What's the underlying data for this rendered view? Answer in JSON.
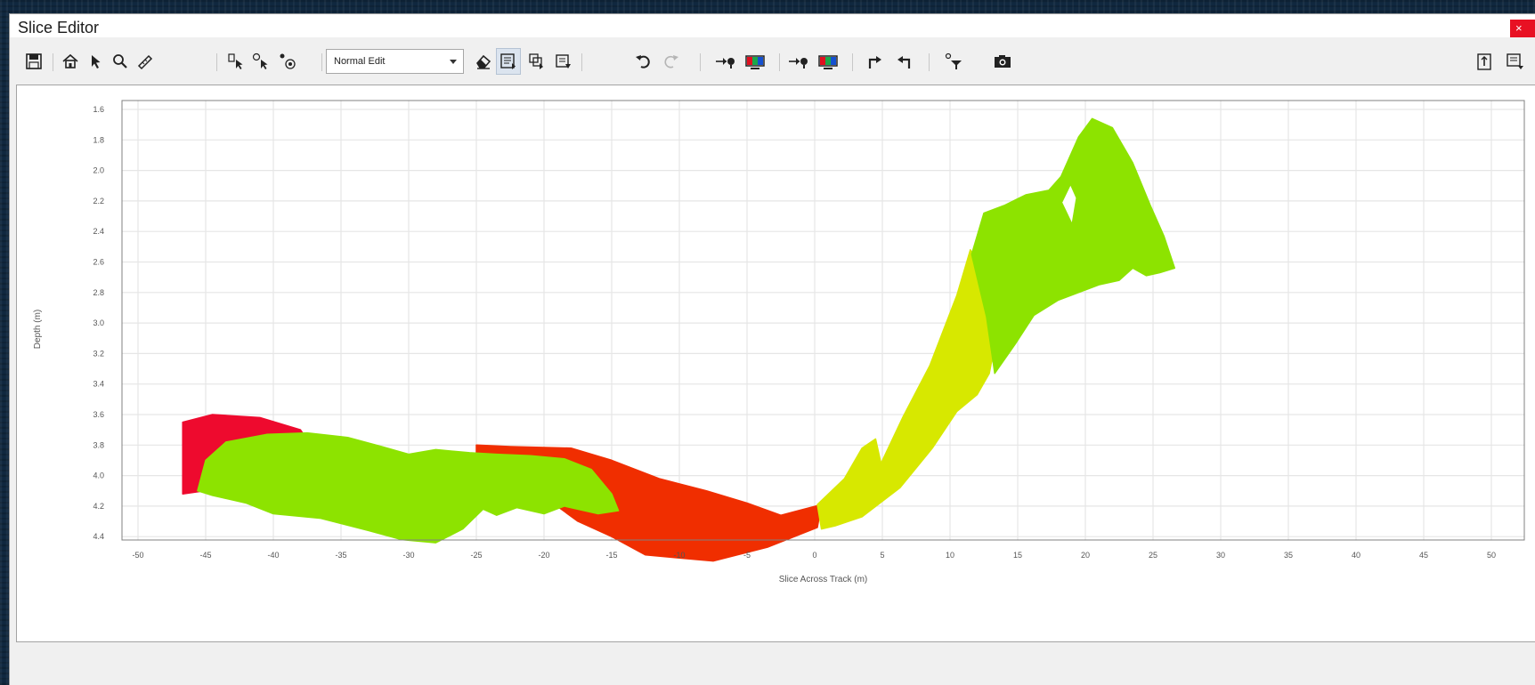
{
  "window": {
    "title": "Slice Editor",
    "close_label": "×"
  },
  "toolbar": {
    "edit_mode": {
      "selected": "Normal Edit"
    },
    "buttons": [
      "save-icon",
      "home-icon",
      "pointer-icon",
      "zoom-icon",
      "measure-icon",
      "select-points-icon",
      "select-points-2-icon",
      "select-points-3-icon",
      "eraser-icon",
      "box-select-icon",
      "lasso-select-icon",
      "box-edit-icon",
      "undo-icon",
      "redo-icon",
      "color-icon",
      "colorbar-icon",
      "color-2-icon",
      "colorbar-2-icon",
      "forward-icon",
      "back-icon",
      "filter-icon",
      "camera-icon",
      "export-icon",
      "panel-menu-icon"
    ]
  },
  "chart_data": {
    "type": "scatter",
    "title": "",
    "xlabel": "Slice Across Track (m)",
    "ylabel": "Depth (m)",
    "xlim": [
      -50,
      50
    ],
    "ylim": [
      1.6,
      4.4
    ],
    "y_inverted": true,
    "grid": true,
    "x_ticks": [
      "-50",
      "-45",
      "-40",
      "-35",
      "-30",
      "-25",
      "-20",
      "-15",
      "-10",
      "-5",
      "0",
      "5",
      "10",
      "15",
      "20",
      "25",
      "30",
      "35",
      "40",
      "45",
      "50"
    ],
    "y_ticks": [
      "1.6",
      "1.8",
      "2.0",
      "2.2",
      "2.4",
      "2.6",
      "2.8",
      "3.0",
      "3.2",
      "3.4",
      "3.6",
      "3.8",
      "4.0",
      "4.2",
      "4.4"
    ],
    "colors": {
      "red": "#ee0a2e",
      "orange_red": "#f02e00",
      "green": "#8de300",
      "yellow": "#d7e800",
      "grid": "#e6e6e6"
    },
    "regions": [
      {
        "color": "red",
        "polygon": [
          [
            -46.7,
            3.65
          ],
          [
            -44.5,
            3.6
          ],
          [
            -41,
            3.62
          ],
          [
            -38,
            3.7
          ],
          [
            -36.5,
            3.9
          ],
          [
            -37,
            4.1
          ],
          [
            -39.5,
            4.08
          ],
          [
            -43.5,
            4.08
          ],
          [
            -46.7,
            4.12
          ]
        ]
      },
      {
        "color": "orange_red",
        "polygon": [
          [
            -25,
            3.8
          ],
          [
            -22.5,
            3.81
          ],
          [
            -18,
            3.82
          ],
          [
            -15,
            3.9
          ],
          [
            -11.5,
            4.02
          ],
          [
            -8,
            4.1
          ],
          [
            -5,
            4.18
          ],
          [
            -2.5,
            4.26
          ],
          [
            0.5,
            4.19
          ],
          [
            0.2,
            4.34
          ],
          [
            -3.5,
            4.47
          ],
          [
            -7.5,
            4.56
          ],
          [
            -10,
            4.54
          ],
          [
            -12.5,
            4.52
          ],
          [
            -15,
            4.4
          ],
          [
            -17.5,
            4.3
          ],
          [
            -19.5,
            4.17
          ],
          [
            -21.5,
            4.08
          ],
          [
            -25,
            3.93
          ]
        ]
      },
      {
        "color": "green",
        "polygon": [
          [
            -45,
            3.9
          ],
          [
            -43.5,
            3.78
          ],
          [
            -40.5,
            3.73
          ],
          [
            -37.5,
            3.72
          ],
          [
            -34.5,
            3.75
          ],
          [
            -32,
            3.81
          ],
          [
            -30,
            3.86
          ],
          [
            -28,
            3.83
          ],
          [
            -25.5,
            3.85
          ],
          [
            -23.5,
            3.86
          ],
          [
            -21,
            3.87
          ],
          [
            -18.5,
            3.89
          ],
          [
            -16.5,
            3.96
          ],
          [
            -15,
            4.12
          ],
          [
            -14.5,
            4.23
          ],
          [
            -16,
            4.25
          ],
          [
            -18.5,
            4.2
          ],
          [
            -20,
            4.25
          ],
          [
            -22,
            4.21
          ],
          [
            -23.5,
            4.26
          ],
          [
            -24.5,
            4.22
          ],
          [
            -26,
            4.35
          ],
          [
            -28,
            4.44
          ],
          [
            -30.5,
            4.42
          ],
          [
            -33,
            4.36
          ],
          [
            -36.5,
            4.28
          ],
          [
            -40,
            4.25
          ],
          [
            -42,
            4.18
          ],
          [
            -44.5,
            4.13
          ],
          [
            -45.6,
            4.1
          ]
        ]
      },
      {
        "color": "yellow",
        "polygon": [
          [
            0.2,
            4.19
          ],
          [
            2.2,
            4.02
          ],
          [
            3.5,
            3.82
          ],
          [
            4.5,
            3.76
          ],
          [
            4.9,
            3.92
          ],
          [
            6.5,
            3.62
          ],
          [
            8.5,
            3.28
          ],
          [
            10.5,
            2.82
          ],
          [
            11.5,
            2.52
          ],
          [
            12.2,
            2.62
          ],
          [
            13.4,
            3.1
          ],
          [
            12.9,
            3.33
          ],
          [
            12.0,
            3.47
          ],
          [
            10.5,
            3.58
          ],
          [
            8.7,
            3.82
          ],
          [
            6.3,
            4.08
          ],
          [
            3.5,
            4.27
          ],
          [
            1.5,
            4.33
          ],
          [
            0.5,
            4.35
          ]
        ]
      },
      {
        "color": "green",
        "polygon": [
          [
            11.6,
            2.55
          ],
          [
            12.5,
            2.28
          ],
          [
            14,
            2.23
          ],
          [
            15.6,
            2.16
          ],
          [
            17.3,
            2.13
          ],
          [
            18.2,
            2.04
          ],
          [
            19.5,
            1.78
          ],
          [
            20.5,
            1.66
          ],
          [
            22,
            1.72
          ],
          [
            23.5,
            1.95
          ],
          [
            24.8,
            2.23
          ],
          [
            25.8,
            2.43
          ],
          [
            26.6,
            2.64
          ],
          [
            25.5,
            2.67
          ],
          [
            24.5,
            2.69
          ],
          [
            23.5,
            2.64
          ],
          [
            22.5,
            2.72
          ],
          [
            21,
            2.75
          ],
          [
            19.5,
            2.8
          ],
          [
            18,
            2.85
          ],
          [
            16.2,
            2.95
          ],
          [
            14.8,
            3.14
          ],
          [
            13.3,
            3.33
          ],
          [
            12.7,
            2.96
          ]
        ]
      }
    ],
    "gaps": [
      {
        "polygon": [
          [
            18.3,
            2.21
          ],
          [
            18.9,
            2.1
          ],
          [
            19.3,
            2.18
          ],
          [
            19.0,
            2.34
          ]
        ]
      }
    ]
  }
}
